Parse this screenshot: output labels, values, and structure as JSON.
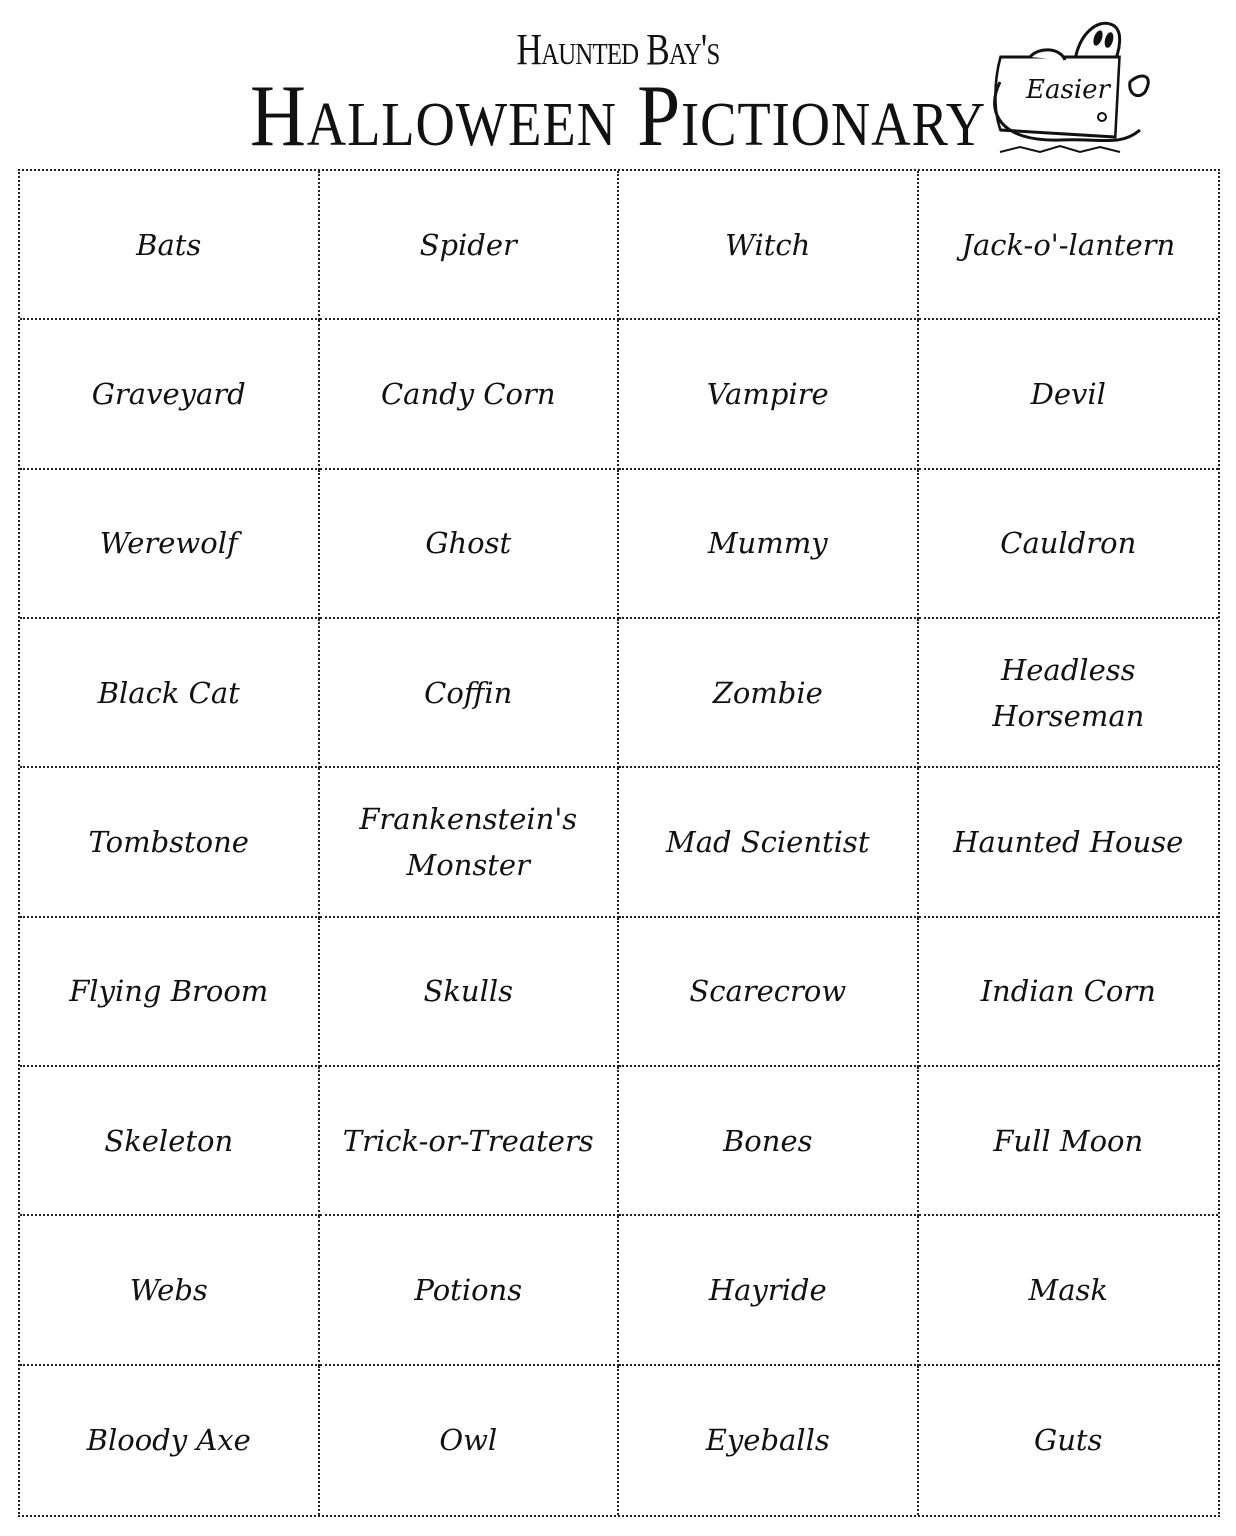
{
  "header": {
    "subtitle": "Haunted Bay's",
    "title": "Halloween Pictionary",
    "badge": "Easier",
    "badge_icon": "ghost-sign-icon"
  },
  "words": [
    "Bats",
    "Spider",
    "Witch",
    "Jack-o'-lantern",
    "Graveyard",
    "Candy Corn",
    "Vampire",
    "Devil",
    "Werewolf",
    "Ghost",
    "Mummy",
    "Cauldron",
    "Black Cat",
    "Coffin",
    "Zombie",
    "Headless Horseman",
    "Tombstone",
    "Frankenstein's Monster",
    "Mad Scientist",
    "Haunted House",
    "Flying Broom",
    "Skulls",
    "Scarecrow",
    "Indian Corn",
    "Skeleton",
    "Trick-or-Treaters",
    "Bones",
    "Full Moon",
    "Webs",
    "Potions",
    "Hayride",
    "Mask",
    "Bloody Axe",
    "Owl",
    "Eyeballs",
    "Guts"
  ]
}
